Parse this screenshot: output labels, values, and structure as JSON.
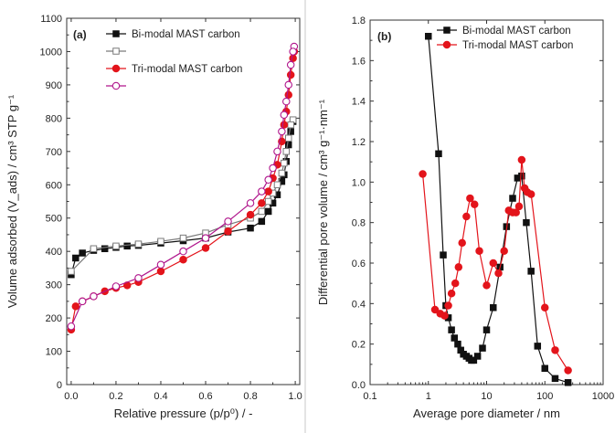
{
  "colors": {
    "bimodal_ads": "#111111",
    "bimodal_des": "#7a7a7a",
    "trimodal_ads": "#e3141b",
    "trimodal_des": "#b0158c"
  },
  "chart_data": [
    {
      "type": "scatter",
      "panel_label": "(a)",
      "xlabel": "Relative pressure (p/p⁰) / -",
      "ylabel": "Volume adsorbed (V_ads) / cm³ STP g⁻¹",
      "xlim": [
        -0.02,
        1.02
      ],
      "ylim": [
        0,
        1100
      ],
      "xticks": [
        "0.0",
        "0.2",
        "0.4",
        "0.6",
        "0.8",
        "1.0"
      ],
      "yticks": [
        "0",
        "100",
        "200",
        "300",
        "400",
        "500",
        "600",
        "700",
        "800",
        "900",
        "1000",
        "1100"
      ],
      "legend_position": "top-left",
      "series": [
        {
          "name": "Bi-modal MAST carbon",
          "marker": "square-filled",
          "color": "#111111",
          "x": [
            0.0,
            0.02,
            0.05,
            0.1,
            0.15,
            0.2,
            0.25,
            0.3,
            0.4,
            0.5,
            0.6,
            0.7,
            0.8,
            0.85,
            0.88,
            0.9,
            0.92,
            0.94,
            0.95,
            0.96,
            0.97,
            0.98,
            0.99
          ],
          "y": [
            330,
            380,
            395,
            403,
            408,
            412,
            416,
            418,
            425,
            432,
            440,
            458,
            470,
            490,
            520,
            545,
            570,
            610,
            630,
            670,
            720,
            760,
            790
          ]
        },
        {
          "name": "",
          "marker": "square-open",
          "color": "#7a7a7a",
          "x": [
            0.99,
            0.98,
            0.97,
            0.96,
            0.95,
            0.94,
            0.92,
            0.9,
            0.88,
            0.85,
            0.8,
            0.7,
            0.6,
            0.5,
            0.4,
            0.3,
            0.2,
            0.1,
            0.0
          ],
          "y": [
            795,
            780,
            740,
            700,
            665,
            635,
            600,
            575,
            550,
            520,
            500,
            480,
            455,
            440,
            430,
            422,
            416,
            408,
            340
          ]
        },
        {
          "name": "Tri-modal MAST carbon",
          "marker": "circle-filled",
          "color": "#e3141b",
          "x": [
            0.0,
            0.02,
            0.05,
            0.1,
            0.15,
            0.2,
            0.25,
            0.3,
            0.4,
            0.5,
            0.6,
            0.7,
            0.8,
            0.85,
            0.88,
            0.9,
            0.92,
            0.94,
            0.95,
            0.96,
            0.97,
            0.98,
            0.99,
            0.995
          ],
          "y": [
            165,
            235,
            250,
            265,
            280,
            290,
            298,
            308,
            340,
            375,
            410,
            460,
            510,
            545,
            580,
            620,
            660,
            730,
            780,
            820,
            870,
            930,
            980,
            1000
          ]
        },
        {
          "name": "",
          "marker": "circle-open",
          "color": "#b0158c",
          "x": [
            0.995,
            0.99,
            0.98,
            0.97,
            0.96,
            0.95,
            0.94,
            0.92,
            0.9,
            0.88,
            0.85,
            0.8,
            0.7,
            0.6,
            0.5,
            0.4,
            0.3,
            0.2,
            0.1,
            0.05,
            0.0
          ],
          "y": [
            1015,
            1000,
            960,
            900,
            850,
            810,
            760,
            700,
            650,
            615,
            580,
            545,
            490,
            440,
            400,
            360,
            320,
            295,
            265,
            250,
            175
          ]
        }
      ]
    },
    {
      "type": "line",
      "panel_label": "(b)",
      "xlabel": "Average pore diameter / nm",
      "ylabel": "Differential pore volume / cm³ g⁻¹·nm⁻¹",
      "xscale": "log",
      "xlim": [
        0.1,
        1000
      ],
      "ylim": [
        0,
        1.8
      ],
      "xticks": [
        "0.1",
        "1",
        "10",
        "100",
        "1000"
      ],
      "yticks": [
        "0.0",
        "0.2",
        "0.4",
        "0.6",
        "0.8",
        "1.0",
        "1.2",
        "1.4",
        "1.6",
        "1.8"
      ],
      "legend_position": "top-right",
      "series": [
        {
          "name": "Bi-modal MAST carbon",
          "marker": "square-filled",
          "color": "#111111",
          "x": [
            1.0,
            1.5,
            1.8,
            2.0,
            2.2,
            2.5,
            2.8,
            3.2,
            3.6,
            4.0,
            4.5,
            5.0,
            5.5,
            6.0,
            7.0,
            8.5,
            10,
            13,
            17,
            22,
            28,
            34,
            40,
            48,
            58,
            75,
            100,
            150,
            250
          ],
          "y": [
            1.72,
            1.14,
            0.64,
            0.39,
            0.33,
            0.27,
            0.23,
            0.2,
            0.17,
            0.15,
            0.14,
            0.13,
            0.12,
            0.12,
            0.14,
            0.18,
            0.27,
            0.38,
            0.58,
            0.78,
            0.92,
            1.02,
            1.03,
            0.8,
            0.56,
            0.19,
            0.08,
            0.03,
            0.01
          ]
        },
        {
          "name": "Tri-modal MAST carbon",
          "marker": "circle-filled",
          "color": "#e3141b",
          "x": [
            0.8,
            1.3,
            1.6,
            1.9,
            2.2,
            2.5,
            2.9,
            3.3,
            3.8,
            4.5,
            5.2,
            6.2,
            7.5,
            10,
            13,
            16,
            20,
            24,
            28,
            32,
            36,
            40,
            45,
            50,
            58,
            100,
            150,
            250
          ],
          "y": [
            1.04,
            0.37,
            0.35,
            0.34,
            0.39,
            0.45,
            0.5,
            0.58,
            0.7,
            0.83,
            0.92,
            0.89,
            0.66,
            0.49,
            0.6,
            0.55,
            0.66,
            0.86,
            0.85,
            0.85,
            0.88,
            1.11,
            0.97,
            0.95,
            0.94,
            0.38,
            0.17,
            0.07
          ]
        }
      ]
    }
  ]
}
